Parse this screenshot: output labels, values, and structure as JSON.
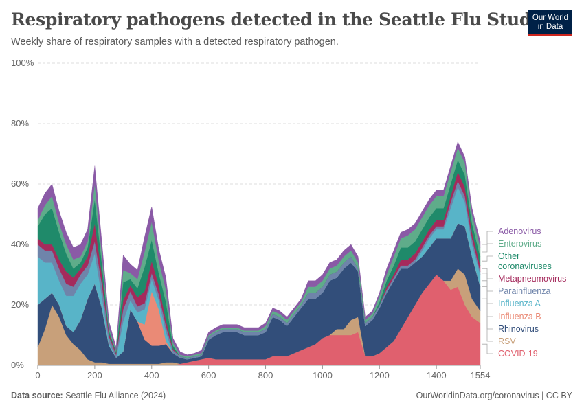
{
  "header": {
    "title": "Respiratory pathogens detected in the Seattle Flu Study",
    "subtitle": "Weekly share of respiratory samples with a detected respiratory pathogen."
  },
  "logo": {
    "line1": "Our World",
    "line2": "in Data"
  },
  "footer": {
    "source_label": "Data source:",
    "source_text": "Seattle Flu Alliance (2024)",
    "credit": "OurWorldinData.org/coronavirus | CC BY"
  },
  "colors": {
    "COVID-19": "#e0606e",
    "RSV": "#c8a07a",
    "Rhinovirus": "#324e7a",
    "Influenza B": "#ea8a76",
    "Influenza A": "#58b4c8",
    "Parainfluenza": "#6f84aa",
    "Metapneumovirus": "#a52a5c",
    "Other coronaviruses": "#1f8a6a",
    "Enterovirus": "#5fac8a",
    "Adenovirus": "#8a5aa6"
  },
  "chart_data": {
    "type": "area",
    "stacked": true,
    "title": "Respiratory pathogens detected in the Seattle Flu Study",
    "xlabel": "",
    "ylabel": "",
    "xlim": [
      0,
      1554
    ],
    "ylim": [
      0,
      100
    ],
    "x_ticks": [
      0,
      200,
      400,
      600,
      800,
      1000,
      1200,
      1400,
      1554
    ],
    "y_ticks": [
      "0%",
      "20%",
      "40%",
      "60%",
      "80%",
      "100%"
    ],
    "y_tick_values": [
      0,
      20,
      40,
      60,
      80,
      100
    ],
    "grid": true,
    "legend_placement": "right",
    "x": [
      0,
      25,
      50,
      75,
      100,
      125,
      150,
      175,
      200,
      225,
      250,
      275,
      300,
      325,
      350,
      375,
      400,
      425,
      450,
      475,
      500,
      525,
      550,
      575,
      600,
      625,
      650,
      675,
      700,
      725,
      750,
      775,
      800,
      825,
      850,
      875,
      900,
      925,
      950,
      975,
      1000,
      1025,
      1050,
      1075,
      1100,
      1125,
      1150,
      1175,
      1200,
      1225,
      1250,
      1275,
      1300,
      1325,
      1350,
      1375,
      1400,
      1425,
      1450,
      1475,
      1500,
      1525,
      1554
    ],
    "series": [
      {
        "name": "COVID-19",
        "values": [
          0,
          0,
          0,
          0,
          0,
          0,
          0,
          0,
          0,
          0,
          0,
          0,
          0,
          0,
          0,
          0,
          0,
          0,
          0,
          0,
          0.5,
          1,
          1.5,
          2,
          2.5,
          2,
          2,
          2,
          2,
          2,
          2,
          2,
          2,
          3,
          3,
          3,
          4,
          5,
          6,
          7,
          9,
          10,
          10,
          10,
          10,
          11,
          3,
          3,
          4,
          6,
          8,
          12,
          16,
          20,
          24,
          27,
          30,
          28,
          25,
          26,
          20,
          16,
          14
        ]
      },
      {
        "name": "RSV",
        "values": [
          6,
          12,
          20,
          16,
          10,
          7,
          5,
          2,
          1,
          1,
          0.5,
          0.5,
          0.5,
          0.5,
          0.5,
          0.5,
          0.5,
          0.5,
          1,
          1,
          0,
          0,
          0,
          0,
          0,
          0,
          0,
          0,
          0,
          0,
          0,
          0,
          0,
          0,
          0,
          0,
          0,
          0,
          0,
          0,
          0,
          0,
          2,
          2,
          5,
          5,
          0,
          0,
          0,
          0,
          0,
          0,
          0,
          0,
          0,
          0,
          0,
          0,
          3,
          6,
          10,
          6,
          4
        ]
      },
      {
        "name": "Rhinovirus",
        "values": [
          14,
          10,
          4,
          4,
          3,
          4,
          10,
          20,
          26,
          18,
          6,
          2,
          4,
          18,
          14,
          8,
          6,
          6,
          6,
          3,
          2,
          1,
          1,
          1,
          6,
          8,
          9,
          9,
          9,
          8,
          8,
          8,
          9,
          13,
          12,
          10,
          12,
          14,
          16,
          15,
          15,
          18,
          17,
          20,
          19,
          15,
          10,
          12,
          15,
          18,
          20,
          20,
          16,
          14,
          12,
          12,
          12,
          14,
          14,
          15,
          16,
          14,
          8
        ]
      },
      {
        "name": "Influenza B",
        "values": [
          0,
          0,
          0,
          0,
          0,
          0,
          0,
          0,
          0,
          0,
          0,
          0,
          0,
          0,
          0,
          5,
          18,
          12,
          1,
          0,
          0,
          0,
          0,
          0,
          0,
          0,
          0,
          0,
          0,
          0,
          0,
          0,
          0,
          0,
          0,
          0,
          0,
          0,
          0,
          0,
          0,
          0,
          0,
          0,
          0,
          0,
          0,
          0,
          0,
          0,
          0,
          0,
          0,
          0,
          0,
          0,
          0,
          0,
          0,
          0,
          0,
          0,
          0
        ]
      },
      {
        "name": "Influenza A",
        "values": [
          16,
          12,
          10,
          8,
          10,
          12,
          12,
          8,
          10,
          4,
          1,
          0,
          10,
          3,
          3,
          5,
          4,
          3,
          3,
          0,
          0,
          0,
          0,
          0,
          0,
          0,
          0,
          0,
          0,
          0,
          0,
          0,
          0,
          0,
          0,
          0,
          0,
          0,
          0,
          0,
          0,
          0,
          0,
          0,
          0,
          0,
          0,
          0,
          0,
          0,
          0,
          0,
          0,
          0,
          2,
          3,
          3,
          3,
          10,
          12,
          8,
          4,
          4
        ]
      },
      {
        "name": "Parainfluenza",
        "values": [
          4,
          4,
          4,
          4,
          4,
          3,
          3,
          3,
          4,
          4,
          2,
          1,
          4,
          3,
          2,
          2,
          2,
          2,
          2,
          1,
          0.5,
          0.5,
          0.5,
          0.5,
          1,
          1,
          1,
          1,
          1,
          1,
          1,
          1,
          1,
          1,
          1,
          1,
          1,
          1,
          2,
          2,
          2,
          2,
          2,
          2,
          2,
          1,
          1,
          1,
          1,
          1,
          1,
          1,
          1,
          1,
          1,
          1,
          1,
          1,
          2,
          2,
          2,
          2,
          1
        ]
      },
      {
        "name": "Metapneumovirus",
        "values": [
          2,
          2,
          2,
          3,
          4,
          3,
          2,
          3,
          6,
          3,
          1,
          0.5,
          3,
          2,
          3,
          4,
          4,
          3,
          2,
          0.5,
          0,
          0,
          0,
          0,
          0,
          0,
          0,
          0,
          0,
          0,
          0,
          0,
          0,
          0,
          0,
          0,
          0,
          0,
          0,
          0,
          0,
          0,
          0,
          0,
          0,
          0,
          0,
          0,
          0,
          1,
          1,
          2,
          2,
          2,
          2,
          2,
          2,
          2,
          2,
          3,
          3,
          2,
          2
        ]
      },
      {
        "name": "Other coronaviruses",
        "values": [
          4,
          10,
          12,
          9,
          6,
          3,
          2,
          3,
          8,
          4,
          1,
          0.5,
          6,
          2,
          3,
          8,
          7,
          4,
          6,
          1,
          0,
          0,
          0,
          0,
          0,
          0,
          0,
          0,
          0,
          0,
          0,
          0,
          0,
          0,
          0,
          0,
          0,
          0,
          0,
          0,
          0,
          0,
          0,
          0,
          0,
          0,
          0,
          0,
          1,
          2,
          3,
          4,
          4,
          4,
          4,
          4,
          4,
          4,
          4,
          4,
          4,
          3,
          3
        ]
      },
      {
        "name": "Enterovirus",
        "values": [
          2,
          3,
          4,
          3,
          3,
          3,
          2,
          2,
          5,
          3,
          1,
          0.5,
          4,
          2,
          3,
          5,
          6,
          4,
          4,
          1,
          0.5,
          0.5,
          0.5,
          0.5,
          0.5,
          0.5,
          0.5,
          0.5,
          0.5,
          0.5,
          0.5,
          0.5,
          1,
          1,
          1,
          1,
          1,
          1,
          2,
          2,
          2,
          2,
          2,
          2,
          2,
          2,
          1,
          1,
          2,
          2,
          3,
          3,
          4,
          4,
          4,
          4,
          4,
          4,
          4,
          4,
          4,
          3,
          3
        ]
      },
      {
        "name": "Adenovirus",
        "values": [
          4,
          4,
          4,
          4,
          4,
          4,
          4,
          4,
          6,
          4,
          2,
          1,
          5,
          3,
          3,
          5,
          5,
          4,
          4,
          1.5,
          1,
          0.5,
          0.5,
          1,
          1,
          1,
          1,
          1,
          1,
          1,
          1,
          1,
          1,
          1,
          1,
          1,
          1,
          1,
          2,
          2,
          2,
          2,
          2,
          2,
          2,
          2,
          1,
          1,
          1,
          2,
          2,
          2,
          2,
          2,
          2,
          2,
          2,
          2,
          2,
          2,
          2,
          2,
          2
        ]
      }
    ]
  }
}
